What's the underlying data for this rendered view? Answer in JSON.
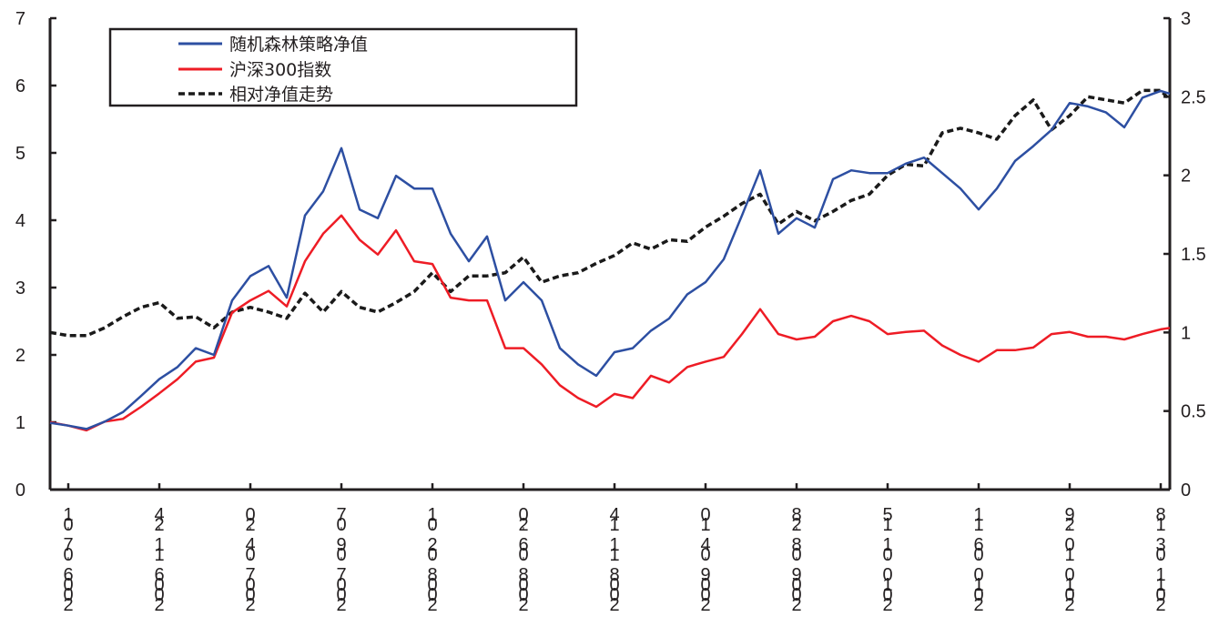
{
  "chart_data": {
    "type": "line",
    "title": "",
    "xlabel": "",
    "ylabel_left": "",
    "ylabel_right": "",
    "x_unit": "week index from 2006-07-01",
    "x": [
      -4,
      0,
      4,
      8,
      12,
      16,
      20,
      24,
      28,
      32,
      36,
      40,
      44,
      48,
      52,
      56,
      60,
      64,
      68,
      72,
      76,
      80,
      84,
      88,
      92,
      96,
      100,
      104,
      108,
      112,
      116,
      120,
      124,
      128,
      132,
      136,
      140,
      144,
      148,
      152,
      156,
      160,
      164,
      168,
      172,
      176,
      180,
      184,
      188,
      192,
      196,
      200,
      204,
      208,
      212,
      216,
      220,
      224,
      228,
      232,
      236,
      240,
      242
    ],
    "x_ticks": [
      {
        "week": 0,
        "label": "2006-07-01"
      },
      {
        "week": 20,
        "label": "2006-11-24"
      },
      {
        "week": 40,
        "label": "2007-04-20"
      },
      {
        "week": 60,
        "label": "2007-09-07"
      },
      {
        "week": 80,
        "label": "2008-02-01"
      },
      {
        "week": 100,
        "label": "2008-06-20"
      },
      {
        "week": 120,
        "label": "2008-11-14"
      },
      {
        "week": 140,
        "label": "2009-04-10"
      },
      {
        "week": 160,
        "label": "2009-08-28"
      },
      {
        "week": 180,
        "label": "2010-01-15"
      },
      {
        "week": 200,
        "label": "2010-06-11"
      },
      {
        "week": 220,
        "label": "2010-10-29"
      },
      {
        "week": 240,
        "label": "2011-03-18"
      }
    ],
    "y_left": {
      "range": [
        0,
        7
      ],
      "ticks": [
        "0",
        "1",
        "2",
        "3",
        "4",
        "5",
        "6",
        "7"
      ]
    },
    "y_right": {
      "range": [
        0,
        3
      ],
      "ticks": [
        "0",
        "0.5",
        "1",
        "1.5",
        "2",
        "2.5",
        "3"
      ]
    },
    "grid": false,
    "legend_position": "top-left",
    "series": [
      {
        "name": "随机森林策略净值",
        "axis": "left",
        "color": "#2d4fa2",
        "style": "solid",
        "values": [
          0.99,
          0.95,
          0.9,
          1.01,
          1.15,
          1.39,
          1.64,
          1.82,
          2.1,
          2.0,
          2.81,
          3.17,
          3.32,
          2.85,
          4.07,
          4.43,
          5.07,
          4.16,
          4.03,
          4.66,
          4.47,
          4.47,
          3.8,
          3.39,
          3.76,
          2.81,
          3.08,
          2.81,
          2.1,
          1.86,
          1.69,
          2.04,
          2.1,
          2.36,
          2.54,
          2.9,
          3.08,
          3.42,
          4.07,
          4.74,
          3.8,
          4.03,
          3.89,
          4.61,
          4.74,
          4.7,
          4.7,
          4.84,
          4.93,
          4.7,
          4.47,
          4.16,
          4.47,
          4.88,
          5.1,
          5.34,
          5.74,
          5.69,
          5.6,
          5.38,
          5.82,
          5.92,
          5.88
        ]
      },
      {
        "name": "沪深300指数",
        "axis": "left",
        "color": "#ee1c25",
        "style": "solid",
        "values": [
          1.0,
          0.95,
          0.88,
          1.01,
          1.05,
          1.23,
          1.43,
          1.64,
          1.9,
          1.96,
          2.63,
          2.81,
          2.95,
          2.72,
          3.39,
          3.8,
          4.07,
          3.71,
          3.49,
          3.85,
          3.39,
          3.35,
          2.85,
          2.81,
          2.81,
          2.1,
          2.1,
          1.86,
          1.55,
          1.36,
          1.23,
          1.42,
          1.36,
          1.69,
          1.59,
          1.82,
          1.9,
          1.97,
          2.31,
          2.68,
          2.31,
          2.23,
          2.27,
          2.5,
          2.58,
          2.5,
          2.31,
          2.34,
          2.36,
          2.14,
          2.0,
          1.9,
          2.07,
          2.07,
          2.11,
          2.31,
          2.34,
          2.27,
          2.27,
          2.23,
          2.31,
          2.38,
          2.4
        ]
      },
      {
        "name": "相对净值走势",
        "axis": "right",
        "color": "#1a1a1a",
        "style": "dashed",
        "values": [
          1.0,
          0.98,
          0.98,
          1.03,
          1.1,
          1.16,
          1.19,
          1.09,
          1.1,
          1.03,
          1.13,
          1.16,
          1.13,
          1.09,
          1.25,
          1.13,
          1.26,
          1.16,
          1.13,
          1.19,
          1.26,
          1.38,
          1.26,
          1.36,
          1.36,
          1.38,
          1.48,
          1.32,
          1.36,
          1.38,
          1.44,
          1.49,
          1.57,
          1.53,
          1.59,
          1.58,
          1.67,
          1.74,
          1.82,
          1.88,
          1.69,
          1.77,
          1.71,
          1.77,
          1.84,
          1.88,
          2.0,
          2.07,
          2.06,
          2.27,
          2.3,
          2.27,
          2.23,
          2.38,
          2.48,
          2.29,
          2.38,
          2.5,
          2.48,
          2.46,
          2.54,
          2.54,
          2.48
        ]
      }
    ]
  }
}
